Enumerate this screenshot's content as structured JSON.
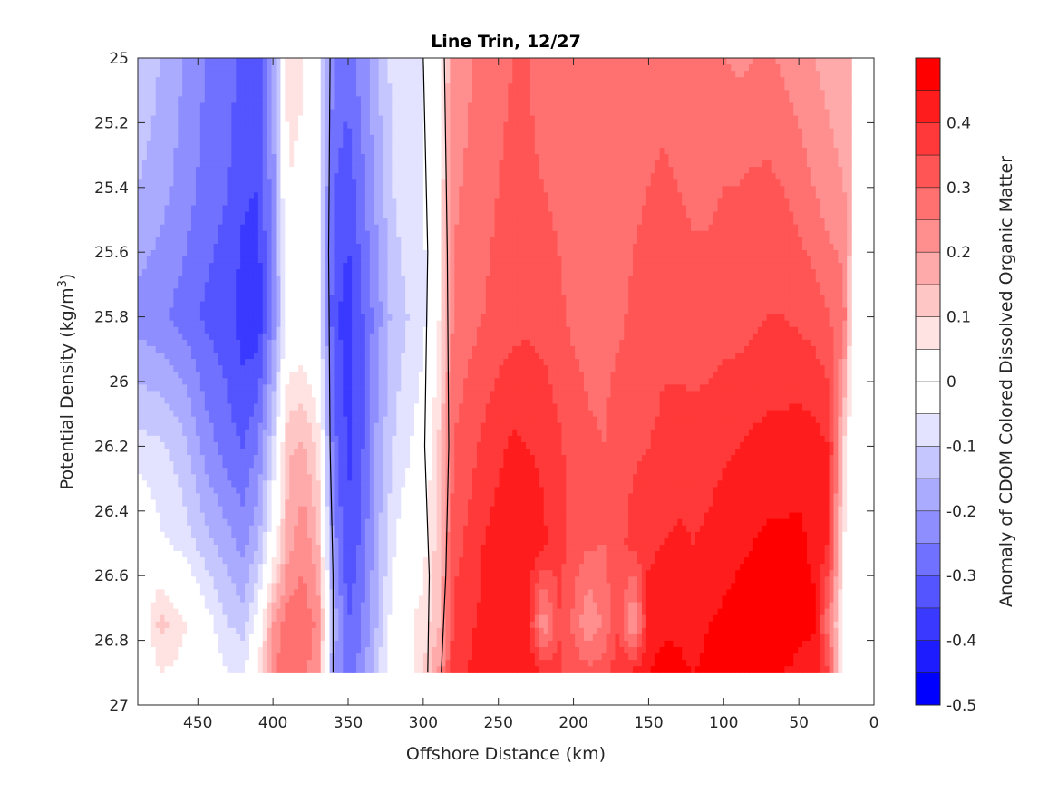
{
  "chart_data": {
    "type": "contour",
    "title": "Line Trin, 12/27",
    "xlabel": "Offshore Distance (km)",
    "ylabel_main": "Potential Density (kg/m",
    "ylabel_sup": "3",
    "ylabel_close": ")",
    "colorbar_label": "Anomaly of CDOM Colored Dissolved Organic Matter",
    "x_reversed": true,
    "y_reversed": true,
    "xlim": [
      0,
      490
    ],
    "ylim": [
      25,
      27
    ],
    "x_ticks": [
      450,
      400,
      350,
      300,
      250,
      200,
      150,
      100,
      50,
      0
    ],
    "y_ticks": [
      25,
      25.2,
      25.4,
      25.6,
      25.8,
      26,
      26.2,
      26.4,
      26.6,
      26.8,
      27
    ],
    "x_tick_labels": [
      "450",
      "400",
      "350",
      "300",
      "250",
      "200",
      "150",
      "100",
      "50",
      "0"
    ],
    "y_tick_labels": [
      "25",
      "25.2",
      "25.4",
      "25.6",
      "25.8",
      "26",
      "26.2",
      "26.4",
      "26.6",
      "26.8",
      "27"
    ],
    "colorbar_range": [
      -0.5,
      0.5
    ],
    "colorbar_ticks": [
      0.4,
      0.3,
      0.2,
      0.1,
      0,
      -0.1,
      -0.2,
      -0.3,
      -0.4,
      -0.5
    ],
    "colorbar_tick_labels": [
      "0.4",
      "0.3",
      "0.2",
      "0.1",
      "0",
      "-0.1",
      "-0.2",
      "-0.3",
      "-0.4",
      "-0.5"
    ],
    "colormap": "blue-white-red, 20 levels, step 0.05",
    "data_extent": {
      "x_max": 490,
      "x_min": 15,
      "y_bottom": 26.9
    },
    "stations_x": [
      490,
      475,
      460,
      445,
      430,
      420,
      410,
      400,
      390,
      380,
      370,
      360,
      350,
      340,
      330,
      320,
      310,
      300,
      290,
      280,
      270,
      260,
      250,
      240,
      230,
      220,
      210,
      200,
      190,
      180,
      170,
      160,
      150,
      140,
      130,
      120,
      110,
      100,
      90,
      80,
      70,
      60,
      50,
      40,
      30,
      20,
      15
    ],
    "density_levels": [
      25.0,
      25.4,
      25.8,
      26.2,
      26.5,
      26.75,
      26.9
    ],
    "anomaly_profiles": [
      [
        -0.1,
        -0.15,
        -0.2,
        -0.25,
        -0.28,
        -0.31,
        -0.32,
        -0.2,
        0.08,
        0.06,
        -0.04,
        -0.25,
        -0.28,
        -0.22,
        -0.15,
        -0.08,
        -0.05,
        -0.05,
        0.02,
        0.22,
        0.24,
        0.27,
        0.29,
        0.3,
        0.3,
        0.28,
        0.27,
        0.26,
        0.25,
        0.25,
        0.26,
        0.27,
        0.28,
        0.28,
        0.27,
        0.26,
        0.26,
        0.25,
        0.24,
        0.25,
        0.26,
        0.24,
        0.22,
        0.2,
        0.18,
        0.17,
        0.16
      ],
      [
        -0.15,
        -0.18,
        -0.22,
        -0.27,
        -0.3,
        -0.34,
        -0.35,
        -0.22,
        0.05,
        0.03,
        -0.04,
        -0.3,
        -0.33,
        -0.26,
        -0.18,
        -0.1,
        -0.07,
        -0.06,
        0.03,
        0.24,
        0.26,
        0.28,
        0.3,
        0.31,
        0.31,
        0.3,
        0.29,
        0.28,
        0.27,
        0.27,
        0.28,
        0.29,
        0.3,
        0.31,
        0.3,
        0.29,
        0.29,
        0.3,
        0.3,
        0.31,
        0.31,
        0.3,
        0.28,
        0.25,
        0.22,
        0.2,
        0.18
      ],
      [
        -0.22,
        -0.24,
        -0.27,
        -0.31,
        -0.33,
        -0.38,
        -0.39,
        -0.24,
        -0.02,
        -0.02,
        -0.04,
        -0.33,
        -0.38,
        -0.3,
        -0.22,
        -0.13,
        -0.1,
        -0.07,
        0.04,
        0.26,
        0.28,
        0.3,
        0.32,
        0.33,
        0.34,
        0.33,
        0.31,
        0.29,
        0.28,
        0.28,
        0.29,
        0.31,
        0.32,
        0.34,
        0.33,
        0.32,
        0.32,
        0.33,
        0.33,
        0.34,
        0.35,
        0.35,
        0.34,
        0.33,
        0.3,
        0.28,
        0.05
      ],
      [
        -0.08,
        -0.09,
        -0.13,
        -0.22,
        -0.28,
        -0.3,
        -0.25,
        -0.1,
        0.14,
        0.16,
        0.08,
        -0.28,
        -0.36,
        -0.3,
        -0.18,
        -0.1,
        -0.06,
        -0.01,
        0.1,
        0.3,
        0.33,
        0.36,
        0.39,
        0.41,
        0.4,
        0.39,
        0.36,
        0.33,
        0.31,
        0.3,
        0.33,
        0.34,
        0.35,
        0.36,
        0.37,
        0.37,
        0.38,
        0.39,
        0.4,
        0.41,
        0.42,
        0.42,
        0.43,
        0.42,
        0.4,
        0.1,
        0.0
      ],
      [
        0.03,
        -0.04,
        -0.07,
        -0.13,
        -0.18,
        -0.22,
        -0.16,
        0.0,
        0.18,
        0.24,
        0.16,
        -0.22,
        -0.35,
        -0.28,
        -0.16,
        -0.06,
        0.0,
        0.03,
        0.12,
        0.33,
        0.36,
        0.4,
        0.42,
        0.44,
        0.43,
        0.41,
        0.37,
        0.33,
        0.31,
        0.3,
        0.33,
        0.37,
        0.39,
        0.4,
        0.41,
        0.4,
        0.41,
        0.43,
        0.44,
        0.45,
        0.46,
        0.46,
        0.46,
        0.44,
        0.4,
        0.05,
        0.0
      ],
      [
        -0.03,
        0.12,
        0.06,
        -0.02,
        -0.1,
        -0.12,
        -0.02,
        0.2,
        0.28,
        0.28,
        0.24,
        -0.16,
        -0.3,
        -0.24,
        -0.14,
        -0.02,
        0.04,
        0.07,
        0.14,
        0.36,
        0.39,
        0.41,
        0.43,
        0.42,
        0.4,
        0.2,
        0.35,
        0.29,
        0.2,
        0.26,
        0.35,
        0.18,
        0.42,
        0.44,
        0.44,
        0.43,
        0.45,
        0.46,
        0.47,
        0.47,
        0.48,
        0.48,
        0.46,
        0.46,
        0.25,
        0.02,
        0.0
      ],
      [
        -0.04,
        0.05,
        0.03,
        0.0,
        -0.05,
        -0.06,
        0.05,
        0.25,
        0.29,
        0.27,
        0.21,
        -0.2,
        -0.3,
        -0.22,
        -0.1,
        0.0,
        0.02,
        0.1,
        0.2,
        0.37,
        0.4,
        0.43,
        0.45,
        0.45,
        0.44,
        0.4,
        0.36,
        0.33,
        0.32,
        0.33,
        0.38,
        0.41,
        0.45,
        0.47,
        0.46,
        0.45,
        0.46,
        0.47,
        0.48,
        0.47,
        0.46,
        0.45,
        0.44,
        0.42,
        0.35,
        0.02,
        0.0
      ]
    ],
    "zero_contours": [
      [
        [
          300,
          25
        ],
        [
          297,
          25.6
        ],
        [
          299,
          26.2
        ],
        [
          296,
          26.6
        ],
        [
          297,
          26.9
        ]
      ],
      [
        [
          362,
          25
        ],
        [
          363,
          25.6
        ],
        [
          362,
          26.2
        ],
        [
          360,
          26.6
        ],
        [
          360,
          26.9
        ]
      ],
      [
        [
          286,
          25
        ],
        [
          284,
          25.6
        ],
        [
          283,
          26.2
        ],
        [
          285,
          26.6
        ],
        [
          288,
          26.9
        ]
      ]
    ],
    "contour_color": "#000000",
    "grid": false
  }
}
